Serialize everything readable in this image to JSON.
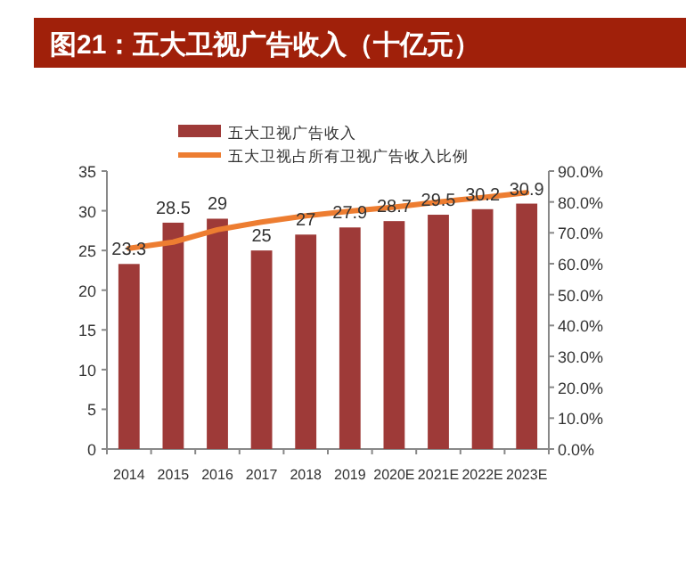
{
  "chart_data": {
    "type": "bar",
    "title": "图21：五大卫视广告收入（十亿元）",
    "categories": [
      "2014",
      "2015",
      "2016",
      "2017",
      "2018",
      "2019",
      "2020E",
      "2021E",
      "2022E",
      "2023E"
    ],
    "series": [
      {
        "name": "五大卫视广告收入",
        "color": "#9e3a38",
        "values": [
          23.3,
          28.5,
          29,
          25,
          27,
          27.9,
          28.7,
          29.5,
          30.2,
          30.9
        ],
        "value_labels": [
          "23.3",
          "28.5",
          "29",
          "25",
          "27",
          "27.9",
          "28.7",
          "29.5",
          "30.2",
          "30.9"
        ]
      },
      {
        "name": "五大卫视占所有卫视广告收入比例",
        "type": "line",
        "axis": "y2",
        "color": "#ed7d31",
        "values": [
          65,
          67,
          71,
          73.5,
          75.5,
          77,
          78.3,
          80,
          81.4,
          83
        ]
      }
    ],
    "ylim": [
      0,
      35
    ],
    "yticks": [
      0,
      5,
      10,
      15,
      20,
      25,
      30,
      35
    ],
    "y2lim": [
      0,
      90
    ],
    "y2ticks": [
      {
        "value": 0,
        "label": "0.0%"
      },
      {
        "value": 10,
        "label": "10.0%"
      },
      {
        "value": 20,
        "label": "20.0%"
      },
      {
        "value": 30,
        "label": "30.0%"
      },
      {
        "value": 40,
        "label": "40.0%"
      },
      {
        "value": 50,
        "label": "50.0%"
      },
      {
        "value": 60,
        "label": "60.0%"
      },
      {
        "value": 70,
        "label": "70.0%"
      },
      {
        "value": 80,
        "label": "80.0%"
      },
      {
        "value": 90,
        "label": "90.0%"
      }
    ],
    "legend": "top",
    "grid": false,
    "marker": "none"
  }
}
